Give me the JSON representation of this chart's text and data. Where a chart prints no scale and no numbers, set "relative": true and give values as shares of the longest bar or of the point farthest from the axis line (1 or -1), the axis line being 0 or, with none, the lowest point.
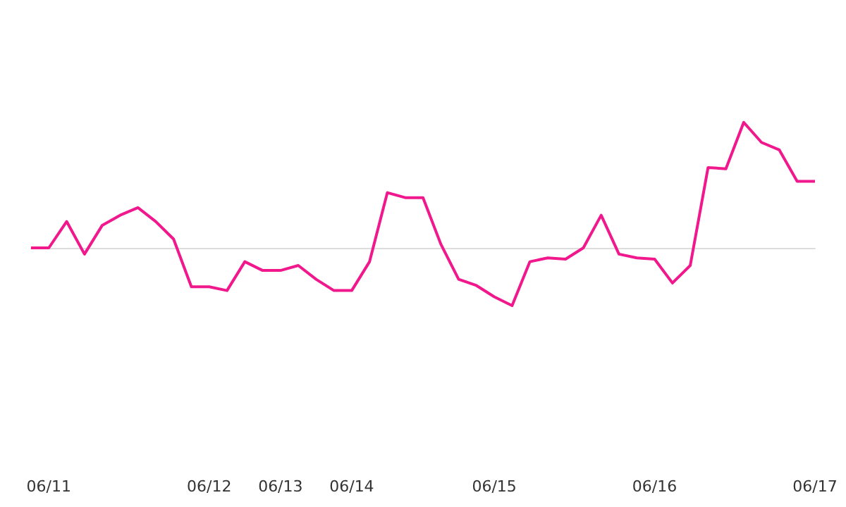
{
  "chart_data": {
    "type": "line",
    "relative": true,
    "marker": "none",
    "color": "#f0188c",
    "categories": [
      null,
      "06/11",
      null,
      null,
      null,
      null,
      null,
      null,
      null,
      null,
      "06/12",
      null,
      null,
      null,
      "06/13",
      null,
      null,
      null,
      "06/14",
      null,
      null,
      null,
      null,
      null,
      null,
      null,
      "06/15",
      null,
      null,
      null,
      null,
      null,
      null,
      null,
      null,
      "06/16",
      null,
      null,
      null,
      null,
      null,
      null,
      null,
      null,
      "06/17"
    ],
    "values": [
      0,
      0,
      0.21,
      -0.05,
      0.18,
      0.26,
      0.32,
      0.21,
      0.07,
      -0.31,
      -0.31,
      -0.34,
      -0.11,
      -0.18,
      -0.18,
      -0.14,
      -0.25,
      -0.34,
      -0.34,
      -0.11,
      0.44,
      0.4,
      0.4,
      0.03,
      -0.25,
      -0.3,
      -0.39,
      -0.46,
      -0.11,
      -0.08,
      -0.09,
      0,
      0.26,
      -0.05,
      -0.08,
      -0.09,
      -0.28,
      -0.14,
      0.64,
      0.63,
      1,
      0.84,
      0.78,
      0.53,
      0.53
    ]
  }
}
